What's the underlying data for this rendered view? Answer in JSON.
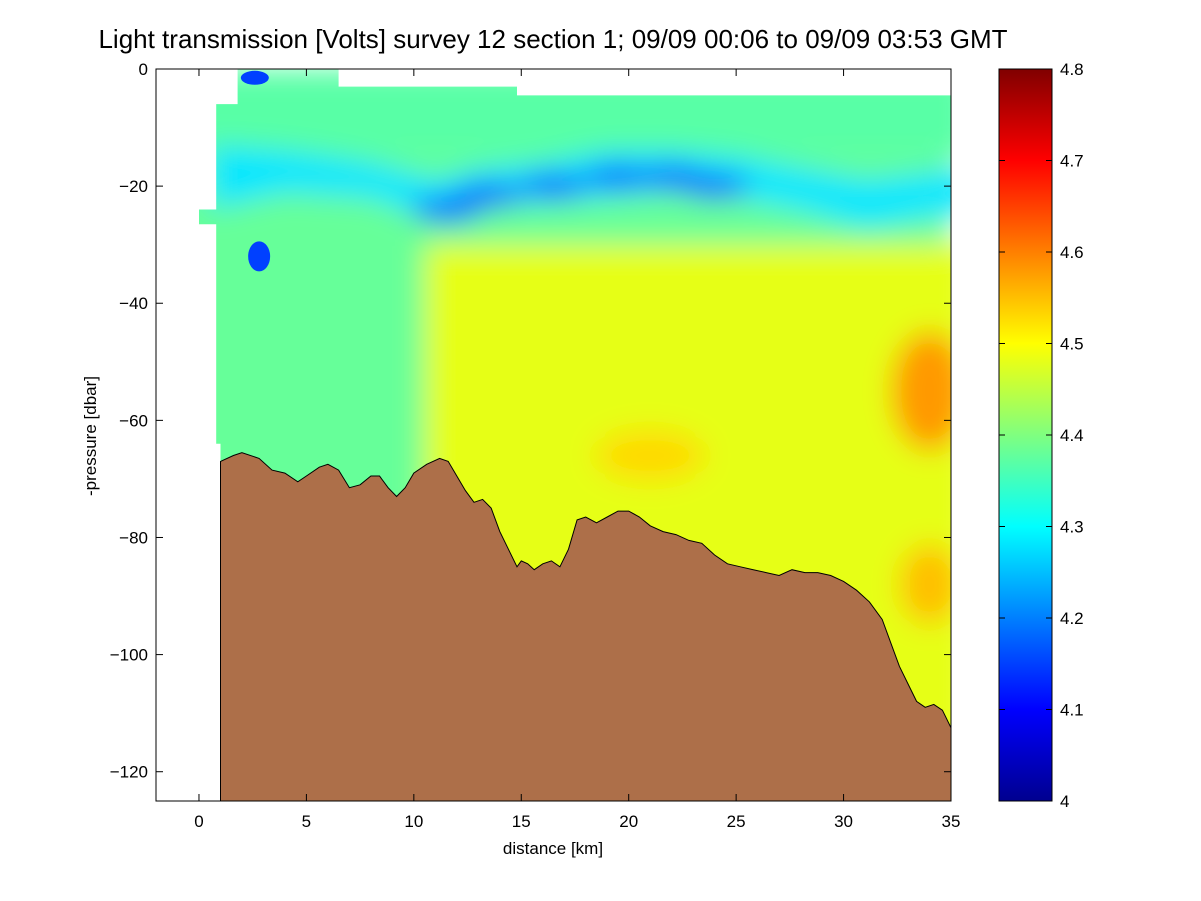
{
  "chart_data": {
    "type": "heatmap",
    "title": "Light transmission [Volts] survey 12 section 1; 09/09 00:06 to 09/09 03:53 GMT",
    "xlabel": "distance [km]",
    "ylabel": "-pressure [dbar]",
    "xlim": [
      -2,
      35
    ],
    "ylim": [
      -125,
      0
    ],
    "x_ticks": [
      0,
      5,
      10,
      15,
      20,
      25,
      30,
      35
    ],
    "y_ticks": [
      0,
      -20,
      -40,
      -60,
      -80,
      -100,
      -120
    ],
    "x_tick_labels": [
      "0",
      "5",
      "10",
      "15",
      "20",
      "25",
      "30",
      "35"
    ],
    "y_tick_labels": [
      "0",
      "−20",
      "−40",
      "−60",
      "−80",
      "−100",
      "−120"
    ],
    "colorbar": {
      "range": [
        4.0,
        4.8
      ],
      "ticks": [
        4.0,
        4.1,
        4.2,
        4.3,
        4.4,
        4.5,
        4.6,
        4.7,
        4.8
      ],
      "tick_labels": [
        "4",
        "4.1",
        "4.2",
        "4.3",
        "4.4",
        "4.5",
        "4.6",
        "4.7",
        "4.8"
      ],
      "colormap": "jet"
    },
    "grid": false,
    "seafloor_color": "#ad6f49",
    "seafloor_profile": [
      [
        1.0,
        -67
      ],
      [
        1.6,
        -66
      ],
      [
        2.0,
        -65.5
      ],
      [
        2.8,
        -66.5
      ],
      [
        3.4,
        -68.5
      ],
      [
        4.0,
        -69
      ],
      [
        4.6,
        -70.5
      ],
      [
        5.0,
        -69.5
      ],
      [
        5.6,
        -68
      ],
      [
        6.0,
        -67.5
      ],
      [
        6.5,
        -68.5
      ],
      [
        7.0,
        -71.5
      ],
      [
        7.5,
        -71
      ],
      [
        8.0,
        -69.5
      ],
      [
        8.4,
        -69.5
      ],
      [
        8.8,
        -71.5
      ],
      [
        9.2,
        -73
      ],
      [
        9.6,
        -71.5
      ],
      [
        10.0,
        -69
      ],
      [
        10.6,
        -67.5
      ],
      [
        11.2,
        -66.5
      ],
      [
        11.6,
        -67
      ],
      [
        12.0,
        -69.5
      ],
      [
        12.4,
        -72
      ],
      [
        12.8,
        -74
      ],
      [
        13.2,
        -73.5
      ],
      [
        13.6,
        -75
      ],
      [
        14.0,
        -79
      ],
      [
        14.4,
        -82
      ],
      [
        14.8,
        -85
      ],
      [
        15.0,
        -84
      ],
      [
        15.3,
        -84.5
      ],
      [
        15.6,
        -85.5
      ],
      [
        16.0,
        -84.5
      ],
      [
        16.4,
        -84
      ],
      [
        16.8,
        -85
      ],
      [
        17.2,
        -82
      ],
      [
        17.6,
        -77
      ],
      [
        18.0,
        -76.5
      ],
      [
        18.5,
        -77.5
      ],
      [
        19.0,
        -76.5
      ],
      [
        19.5,
        -75.5
      ],
      [
        20.0,
        -75.5
      ],
      [
        20.5,
        -76.5
      ],
      [
        21.0,
        -78
      ],
      [
        21.6,
        -79
      ],
      [
        22.2,
        -79.5
      ],
      [
        22.8,
        -80.5
      ],
      [
        23.4,
        -81
      ],
      [
        24.0,
        -83
      ],
      [
        24.6,
        -84.5
      ],
      [
        25.2,
        -85
      ],
      [
        25.8,
        -85.5
      ],
      [
        26.4,
        -86
      ],
      [
        27.0,
        -86.5
      ],
      [
        27.6,
        -85.5
      ],
      [
        28.2,
        -86
      ],
      [
        28.8,
        -86
      ],
      [
        29.4,
        -86.5
      ],
      [
        30.0,
        -87.5
      ],
      [
        30.6,
        -89
      ],
      [
        31.2,
        -91
      ],
      [
        31.8,
        -94
      ],
      [
        32.2,
        -98
      ],
      [
        32.6,
        -102
      ],
      [
        33.0,
        -105
      ],
      [
        33.4,
        -108
      ],
      [
        33.8,
        -109
      ],
      [
        34.2,
        -108.5
      ],
      [
        34.6,
        -109.5
      ],
      [
        35.0,
        -112.5
      ]
    ],
    "data_coverage": [
      [
        1.8,
        0
      ],
      [
        6.5,
        0
      ],
      [
        6.5,
        -3
      ],
      [
        14.8,
        -3
      ],
      [
        14.8,
        -4.5
      ],
      [
        35,
        -4.5
      ],
      [
        35,
        -125
      ],
      [
        1.0,
        -125
      ],
      [
        1.0,
        -64
      ],
      [
        0.8,
        -64
      ],
      [
        0.8,
        -26.5
      ],
      [
        0.0,
        -26.5
      ],
      [
        0.0,
        -24
      ],
      [
        0.8,
        -24
      ],
      [
        0.8,
        -6
      ],
      [
        1.8,
        -6
      ]
    ],
    "field_levels": {
      "surface_layer_0_to_15_dbar": 4.37,
      "low_transmission_band_depth_dbar": -20,
      "low_transmission_band_min_value": 4.18,
      "low_spot_near_3km_30dbar": 4.15,
      "mid_layer_west": 4.38,
      "mid_layer_east": 4.48,
      "east_edge_max_value": 4.58
    }
  }
}
